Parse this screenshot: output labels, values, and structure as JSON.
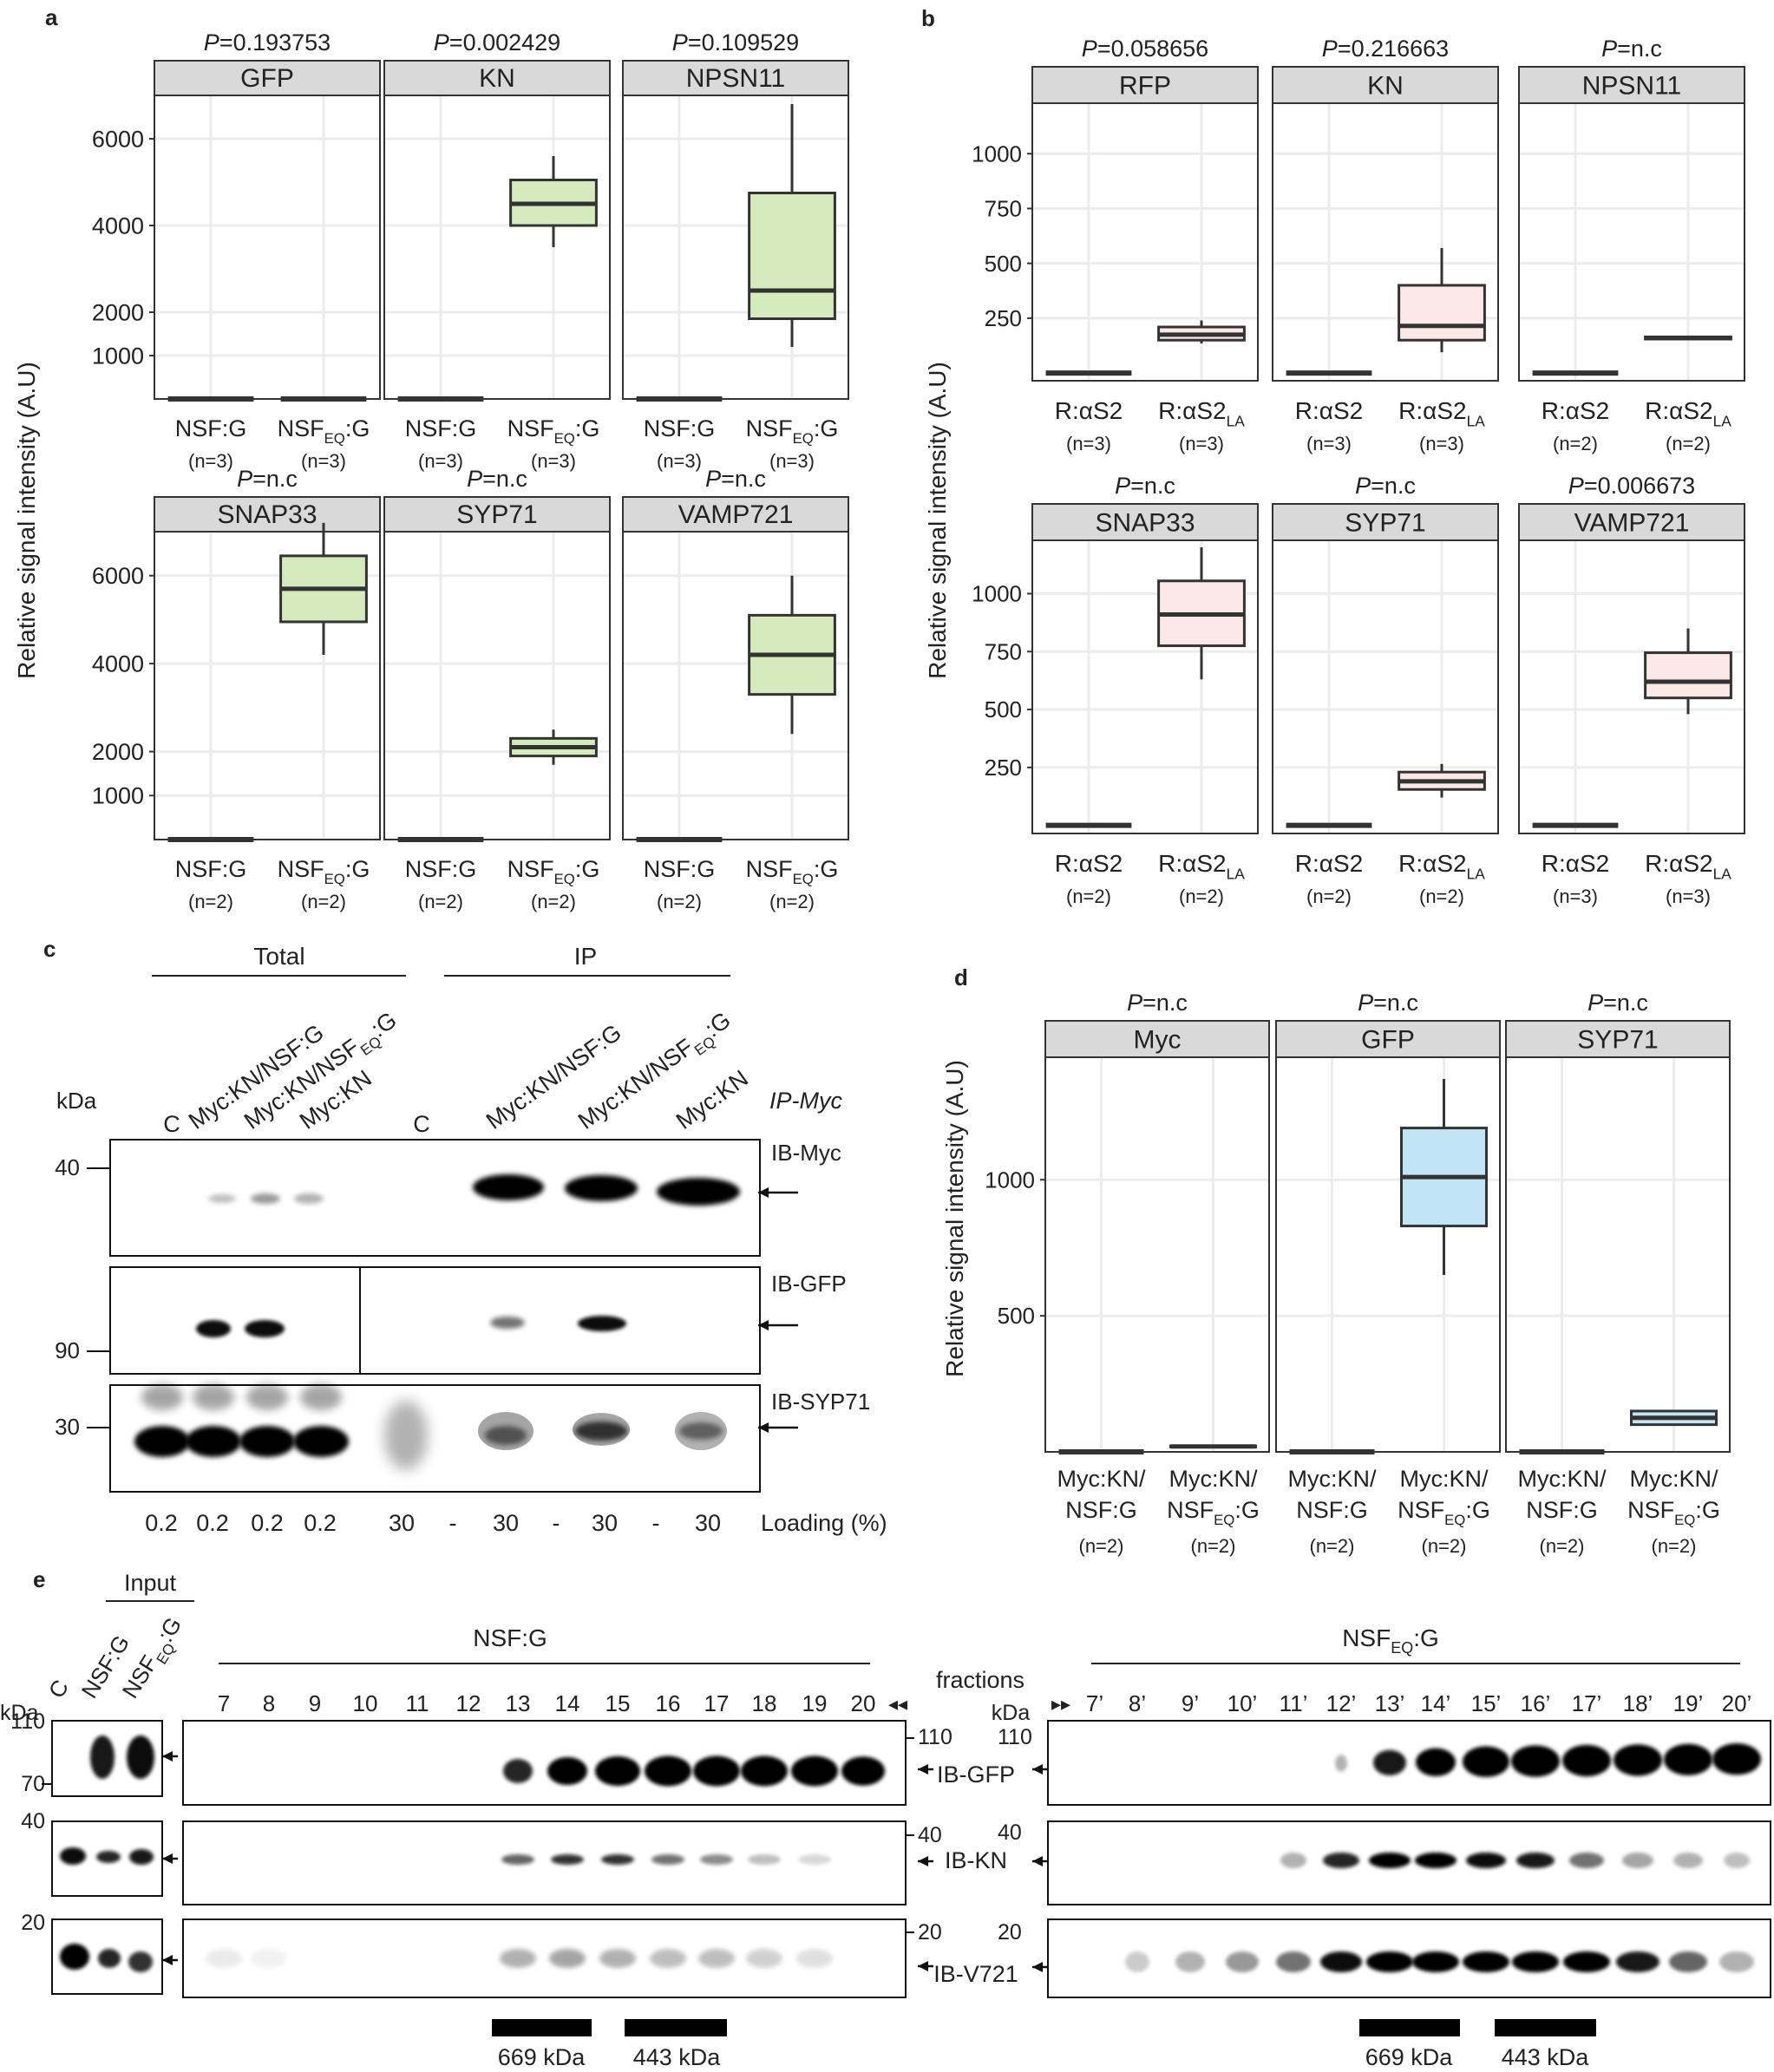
{
  "panel_labels": {
    "a": "a",
    "b": "b",
    "c": "c",
    "d": "d",
    "e": "e"
  },
  "ylabel": "Relative signal intensity (A.U)",
  "colors": {
    "green": "#d6ebbd",
    "pink": "#fbe8e7",
    "blue": "#c1e5f5",
    "header": "#d9d9d9",
    "grid": "#ececec",
    "frame": "#333333"
  },
  "panel_a": {
    "type": "box",
    "yticks": [
      "6000",
      "4000",
      "2000",
      "1000"
    ],
    "ylim": [
      0,
      7000
    ],
    "rows": [
      {
        "facets": [
          {
            "title": "GFP",
            "p_prefix": "P",
            "p_value": "=0.193753",
            "groups": [
              {
                "line1": "NSF:G",
                "sub": "",
                "n": "(n=3)",
                "stats": [
                  0,
                  0,
                  0,
                  0,
                  0
                ]
              },
              {
                "line1": "NSF",
                "sub": "EQ",
                "suffix": ":G",
                "n": "(n=3)",
                "stats": [
                  0,
                  0,
                  0,
                  0,
                  0
                ]
              }
            ]
          },
          {
            "title": "KN",
            "p_prefix": "P",
            "p_value": "=0.002429",
            "groups": [
              {
                "line1": "NSF:G",
                "sub": "",
                "n": "(n=3)",
                "stats": [
                  0,
                  0,
                  0,
                  0,
                  0
                ]
              },
              {
                "line1": "NSF",
                "sub": "EQ",
                "suffix": ":G",
                "n": "(n=3)",
                "stats": [
                  3500,
                  4000,
                  4500,
                  5050,
                  5600
                ]
              }
            ]
          },
          {
            "title": "NPSN11",
            "p_prefix": "P",
            "p_value": "=0.109529",
            "groups": [
              {
                "line1": "NSF:G",
                "sub": "",
                "n": "(n=3)",
                "stats": [
                  0,
                  0,
                  0,
                  0,
                  0
                ]
              },
              {
                "line1": "NSF",
                "sub": "EQ",
                "suffix": ":G",
                "n": "(n=3)",
                "stats": [
                  1200,
                  1850,
                  2500,
                  4750,
                  6800
                ]
              }
            ]
          }
        ]
      },
      {
        "facets": [
          {
            "title": "SNAP33",
            "p_prefix": "P",
            "p_value": "=n.c",
            "groups": [
              {
                "line1": "NSF:G",
                "sub": "",
                "n": "(n=2)",
                "stats": [
                  0,
                  0,
                  0,
                  0,
                  0
                ]
              },
              {
                "line1": "NSF",
                "sub": "EQ",
                "suffix": ":G",
                "n": "(n=2)",
                "stats": [
                  4200,
                  4950,
                  5700,
                  6450,
                  7200
                ]
              }
            ]
          },
          {
            "title": "SYP71",
            "p_prefix": "P",
            "p_value": "=n.c",
            "groups": [
              {
                "line1": "NSF:G",
                "sub": "",
                "n": "(n=2)",
                "stats": [
                  0,
                  0,
                  0,
                  0,
                  0
                ]
              },
              {
                "line1": "NSF",
                "sub": "EQ",
                "suffix": ":G",
                "n": "(n=2)",
                "stats": [
                  1700,
                  1900,
                  2100,
                  2300,
                  2500
                ]
              }
            ]
          },
          {
            "title": "VAMP721",
            "p_prefix": "P",
            "p_value": "=n.c",
            "groups": [
              {
                "line1": "NSF:G",
                "sub": "",
                "n": "(n=2)",
                "stats": [
                  0,
                  0,
                  0,
                  0,
                  0
                ]
              },
              {
                "line1": "NSF",
                "sub": "EQ",
                "suffix": ":G",
                "n": "(n=2)",
                "stats": [
                  2400,
                  3300,
                  4200,
                  5100,
                  6000
                ]
              }
            ]
          }
        ]
      }
    ]
  },
  "panel_b": {
    "type": "box",
    "yticks": [
      "1000",
      "750",
      "500",
      "250"
    ],
    "ylim": [
      -35,
      1230
    ],
    "rows": [
      {
        "facets": [
          {
            "title": "RFP",
            "p_prefix": "P",
            "p_value": "=0.058656",
            "groups": [
              {
                "line1": "R:αS2",
                "sub": "",
                "n": "(n=3)",
                "stats": [
                  0,
                  0,
                  0,
                  0,
                  0
                ]
              },
              {
                "line1": "R:αS2",
                "sub": "LA",
                "suffix": "",
                "n": "(n=3)",
                "stats": [
                  135,
                  150,
                  175,
                  210,
                  240
                ]
              }
            ]
          },
          {
            "title": "KN",
            "p_prefix": "P",
            "p_value": "=0.216663",
            "groups": [
              {
                "line1": "R:αS2",
                "sub": "",
                "n": "(n=3)",
                "stats": [
                  0,
                  0,
                  0,
                  0,
                  0
                ]
              },
              {
                "line1": "R:αS2",
                "sub": "LA",
                "suffix": "",
                "n": "(n=3)",
                "stats": [
                  95,
                  150,
                  215,
                  400,
                  570
                ]
              }
            ]
          },
          {
            "title": "NPSN11",
            "p_prefix": "P",
            "p_value": "=n.c",
            "groups": [
              {
                "line1": "R:αS2",
                "sub": "",
                "n": "(n=2)",
                "stats": [
                  0,
                  0,
                  0,
                  0,
                  0
                ]
              },
              {
                "line1": "R:αS2",
                "sub": "LA",
                "suffix": "",
                "n": "(n=2)",
                "stats": [
                  155,
                  155,
                  160,
                  165,
                  165
                ]
              }
            ]
          }
        ]
      },
      {
        "facets": [
          {
            "title": "SNAP33",
            "p_prefix": "P",
            "p_value": "=n.c",
            "groups": [
              {
                "line1": "R:αS2",
                "sub": "",
                "n": "(n=2)",
                "stats": [
                  0,
                  0,
                  0,
                  0,
                  0
                ]
              },
              {
                "line1": "R:αS2",
                "sub": "LA",
                "suffix": "",
                "n": "(n=2)",
                "stats": [
                  630,
                  775,
                  910,
                  1055,
                  1200
                ]
              }
            ]
          },
          {
            "title": "SYP71",
            "p_prefix": "P",
            "p_value": "=n.c",
            "groups": [
              {
                "line1": "R:αS2",
                "sub": "",
                "n": "(n=2)",
                "stats": [
                  0,
                  0,
                  0,
                  0,
                  0
                ]
              },
              {
                "line1": "R:αS2",
                "sub": "LA",
                "suffix": "",
                "n": "(n=2)",
                "stats": [
                  120,
                  155,
                  190,
                  230,
                  265
                ]
              }
            ]
          },
          {
            "title": "VAMP721",
            "p_prefix": "P",
            "p_value": "=0.006673",
            "groups": [
              {
                "line1": "R:αS2",
                "sub": "",
                "n": "(n=3)",
                "stats": [
                  0,
                  0,
                  0,
                  0,
                  0
                ]
              },
              {
                "line1": "R:αS2",
                "sub": "LA",
                "suffix": "",
                "n": "(n=3)",
                "stats": [
                  480,
                  550,
                  620,
                  745,
                  850
                ]
              }
            ]
          }
        ]
      }
    ]
  },
  "panel_c": {
    "group_total": "Total",
    "group_ip": "IP",
    "kda": "kDa",
    "ip_label": "IP-Myc",
    "lanes": [
      "C",
      "Myc:KN/NSF:G",
      "Myc:KN/NSF",
      "Myc:KN",
      "C",
      "Myc:KN/NSF:G",
      "Myc:KN/NSF",
      "Myc:KN"
    ],
    "lane_sub": "EQ",
    "lane_suffix": ":G",
    "blots": [
      {
        "label": "IB-Myc",
        "marker": "40"
      },
      {
        "label": "IB-GFP",
        "marker": "90"
      },
      {
        "label": "IB-SYP71",
        "marker": "30"
      }
    ],
    "loading": [
      "0.2",
      "0.2",
      "0.2",
      "0.2",
      "30",
      "-",
      "30",
      "-",
      "30",
      "-",
      "30"
    ],
    "loading_label": "Loading (%)",
    "arrow": "←"
  },
  "panel_d": {
    "type": "box",
    "yticks": [
      "1000",
      "500"
    ],
    "ylim": [
      0,
      1450
    ],
    "facets": [
      {
        "title": "Myc",
        "p_prefix": "P",
        "p_value": "=n.c",
        "groups": [
          {
            "l1": "Myc:KN/",
            "l2": "NSF:G",
            "sub": "",
            "n": "(n=2)",
            "stats": [
              0,
              0,
              0,
              0,
              0
            ]
          },
          {
            "l1": "Myc:KN/",
            "l2": "NSF",
            "sub": "EQ",
            "suffix": ":G",
            "n": "(n=2)",
            "stats": [
              18,
              18,
              20,
              22,
              22
            ]
          }
        ]
      },
      {
        "title": "GFP",
        "p_prefix": "P",
        "p_value": "=n.c",
        "groups": [
          {
            "l1": "Myc:KN/",
            "l2": "NSF:G",
            "sub": "",
            "n": "(n=2)",
            "stats": [
              0,
              0,
              0,
              0,
              0
            ]
          },
          {
            "l1": "Myc:KN/",
            "l2": "NSF",
            "sub": "EQ",
            "suffix": ":G",
            "n": "(n=2)",
            "stats": [
              650,
              830,
              1010,
              1190,
              1370
            ]
          }
        ]
      },
      {
        "title": "SYP71",
        "p_prefix": "P",
        "p_value": "=n.c",
        "groups": [
          {
            "l1": "Myc:KN/",
            "l2": "NSF:G",
            "sub": "",
            "n": "(n=2)",
            "stats": [
              0,
              0,
              0,
              0,
              0
            ]
          },
          {
            "l1": "Myc:KN/",
            "l2": "NSF",
            "sub": "EQ",
            "suffix": ":G",
            "n": "(n=2)",
            "stats": [
              100,
              100,
              125,
              150,
              150
            ]
          }
        ]
      }
    ]
  },
  "panel_e": {
    "input_label": "Input",
    "input_lanes": [
      "C",
      "NSF:G",
      "NSF"
    ],
    "input_sub": "EQ",
    "input_suffix": ":G",
    "kda": "kDa",
    "left_title": "NSF:G",
    "right_title": "NSF",
    "right_sub": "EQ",
    "right_suffix": ":G",
    "fractions_label": "fractions",
    "left_fractions": [
      "7",
      "8",
      "9",
      "10",
      "11",
      "12",
      "13",
      "14",
      "15",
      "16",
      "17",
      "18",
      "19",
      "20"
    ],
    "right_fractions": [
      "7’",
      "8’",
      "9’",
      "10’",
      "11’",
      "12’",
      "13’",
      "14’",
      "15’",
      "16’",
      "17’",
      "18’",
      "19’",
      "20’"
    ],
    "blots": [
      {
        "label": "IB-GFP",
        "m_top": "110",
        "m_bottom": "70"
      },
      {
        "label": "IB-KN",
        "m_top": "40"
      },
      {
        "label": "IB-V721",
        "m_top": "20"
      }
    ],
    "size_markers": [
      "669 kDa",
      "443 kDa"
    ]
  }
}
